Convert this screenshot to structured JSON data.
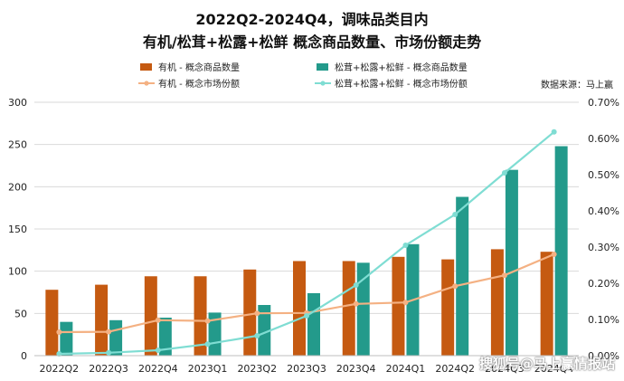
{
  "title_line1": "2022Q2-2024Q4，调味品类目内",
  "title_line2": "有机/松茸+松露+松鲜 概念商品数量、市场份额走势",
  "source": "数据来源：马上赢",
  "watermark": "搜狐号@马上赢情报站",
  "colors": {
    "organic_bar": "#C55A11",
    "truffle_bar": "#239A8B",
    "organic_line": "#F4B183",
    "truffle_line": "#7FDDD3"
  },
  "chart_data": {
    "type": "bar+line",
    "categories": [
      "2022Q2",
      "2022Q3",
      "2022Q4",
      "2023Q1",
      "2023Q2",
      "2023Q3",
      "2023Q4",
      "2024Q1",
      "2024Q2",
      "2024Q3",
      "2024Q4"
    ],
    "bar_series": [
      {
        "name": "有机 - 概念商品数量",
        "values": [
          78,
          84,
          94,
          94,
          102,
          112,
          112,
          117,
          114,
          126,
          123
        ]
      },
      {
        "name": "松茸+松露+松鲜 - 概念商品数量",
        "values": [
          40,
          42,
          45,
          51,
          60,
          74,
          110,
          132,
          188,
          220,
          248
        ]
      }
    ],
    "line_series": [
      {
        "name": "有机 - 概念市场份额",
        "values": [
          0.065,
          0.066,
          0.098,
          0.096,
          0.117,
          0.118,
          0.143,
          0.147,
          0.192,
          0.222,
          0.28
        ]
      },
      {
        "name": "松茸+松露+松鲜 - 概念市场份额",
        "values": [
          0.005,
          0.008,
          0.015,
          0.032,
          0.055,
          0.11,
          0.195,
          0.305,
          0.39,
          0.505,
          0.618
        ]
      }
    ],
    "y_left": {
      "min": 0,
      "max": 300,
      "ticks": [
        0,
        50,
        100,
        150,
        200,
        250,
        300
      ]
    },
    "y_right": {
      "min": 0,
      "max": 0.7,
      "ticks": [
        "0.00%",
        "0.10%",
        "0.20%",
        "0.30%",
        "0.40%",
        "0.50%",
        "0.60%",
        "0.70%"
      ]
    },
    "grid": true,
    "legend_position": "top"
  }
}
